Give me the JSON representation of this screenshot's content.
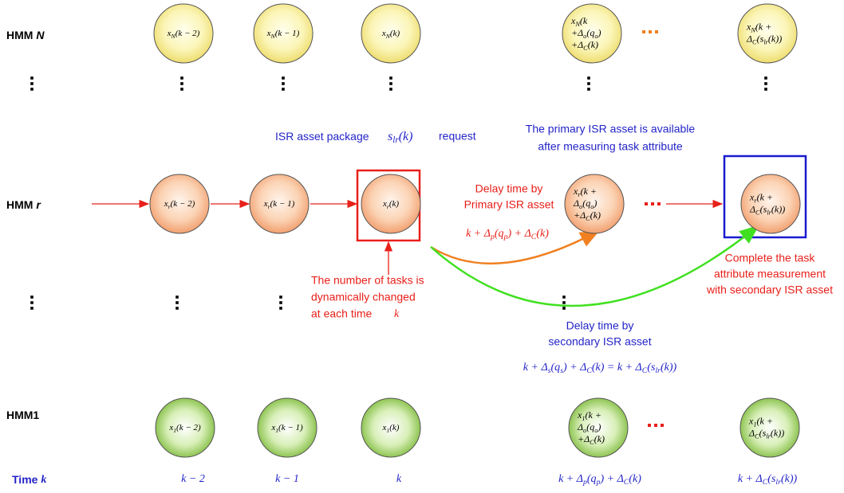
{
  "rows": [
    {
      "label": "HMM",
      "var": "N",
      "nodes": [
        [
          [
            "x",
            {
              "sub": "N"
            },
            "(k − 2)"
          ]
        ],
        [
          [
            "x",
            {
              "sub": "N"
            },
            "(k − 1)"
          ]
        ],
        [
          [
            "x",
            {
              "sub": "N"
            },
            "(k)"
          ]
        ],
        [
          [
            "x",
            {
              "sub": "N"
            },
            "(k"
          ],
          [
            "+Δ",
            {
              "sub": "o"
            },
            "(q",
            {
              "sub": "o"
            },
            ")"
          ],
          [
            "+Δ",
            {
              "sub": "C"
            },
            "(k)"
          ]
        ],
        [
          [
            "x",
            {
              "sub": "N"
            },
            "(k +"
          ],
          [
            "Δ",
            {
              "sub": "C"
            },
            "(s",
            {
              "sub": "lr"
            },
            "(k))"
          ]
        ]
      ]
    },
    {
      "label": "HMM",
      "var": "r",
      "nodes": [
        [
          [
            "x",
            {
              "sub": "r"
            },
            "(k − 2)"
          ]
        ],
        [
          [
            "x",
            {
              "sub": "r"
            },
            "(k − 1)"
          ]
        ],
        [
          [
            "x",
            {
              "sub": "r"
            },
            "(k)"
          ]
        ],
        [
          [
            "x",
            {
              "sub": "r"
            },
            "(k +"
          ],
          [
            "Δ",
            {
              "sub": "o"
            },
            "(q",
            {
              "sub": "o"
            },
            ")"
          ],
          [
            "+Δ",
            {
              "sub": "C"
            },
            "(k)"
          ]
        ],
        [
          [
            "x",
            {
              "sub": "r"
            },
            "(k +"
          ],
          [
            "Δ",
            {
              "sub": "C"
            },
            "(s",
            {
              "sub": "lr"
            },
            "(k))"
          ]
        ]
      ]
    },
    {
      "label": "HMM1",
      "nodes": [
        [
          [
            "x",
            {
              "sub": "1"
            },
            "(k − 2)"
          ]
        ],
        [
          [
            "x",
            {
              "sub": "1"
            },
            "(k − 1)"
          ]
        ],
        [
          [
            "x",
            {
              "sub": "1"
            },
            "(k)"
          ]
        ],
        [
          [
            "x",
            {
              "sub": "1"
            },
            "(k +"
          ],
          [
            "Δ",
            {
              "sub": "o"
            },
            "(q",
            {
              "sub": "o"
            },
            ")"
          ],
          [
            "+Δ",
            {
              "sub": "C"
            },
            "(k)"
          ]
        ],
        [
          [
            "x",
            {
              "sub": "1"
            },
            "(k +"
          ],
          [
            "Δ",
            {
              "sub": "C"
            },
            "(s",
            {
              "sub": "lr"
            },
            "(k))"
          ]
        ]
      ]
    }
  ],
  "time": {
    "label": "Time",
    "var": "k",
    "steps": [
      [
        "k − 2"
      ],
      [
        "k − 1"
      ],
      [
        "k"
      ],
      [
        "k + Δ",
        {
          "sub": "p"
        },
        "(q",
        {
          "sub": "p"
        },
        ") + Δ",
        {
          "sub": "C"
        },
        "(k)"
      ],
      [
        "k + Δ",
        {
          "sub": "C"
        },
        "(s",
        {
          "sub": "lr"
        },
        "(k))"
      ]
    ]
  },
  "annotations": {
    "request": {
      "before": "ISR asset package",
      "math": [
        "s",
        {
          "sub": "lr"
        },
        "(k)"
      ],
      "after": "request"
    },
    "primary_available": [
      "The primary ISR asset is available",
      "after measuring task attribute"
    ],
    "primary_delay": {
      "lines": [
        "Delay time by",
        "Primary ISR asset"
      ],
      "math": [
        "k + Δ",
        {
          "sub": "p"
        },
        "(q",
        {
          "sub": "p"
        },
        ") + Δ",
        {
          "sub": "C"
        },
        "(k)"
      ]
    },
    "tasks": {
      "lines": [
        "The number of tasks is",
        "dynamically changed",
        "at each time"
      ],
      "var": "k"
    },
    "complete": [
      "Complete the task",
      "attribute measurement",
      "with secondary ISR asset"
    ],
    "secondary_delay": {
      "lines": [
        "Delay time by",
        "secondary ISR asset"
      ],
      "math": [
        "k + Δ",
        {
          "sub": "s"
        },
        "(q",
        {
          "sub": "s"
        },
        ") + Δ",
        {
          "sub": "C"
        },
        "(k) = k + Δ",
        {
          "sub": "C"
        },
        "(s",
        {
          "sub": "lr"
        },
        "(k))"
      ]
    }
  }
}
